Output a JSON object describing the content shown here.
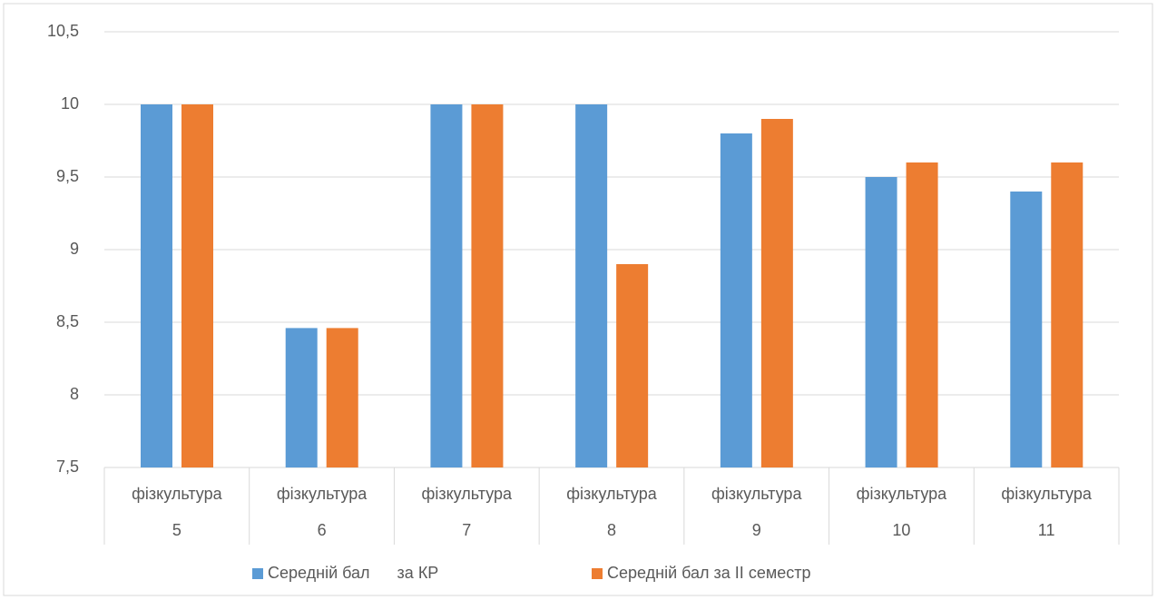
{
  "chart_data": {
    "type": "bar",
    "categories": [
      {
        "label": "фізкультура",
        "sublabel": "5"
      },
      {
        "label": "фізкультура",
        "sublabel": "6"
      },
      {
        "label": "фізкультура",
        "sublabel": "7"
      },
      {
        "label": "фізкультура",
        "sublabel": "8"
      },
      {
        "label": "фізкультура",
        "sublabel": "9"
      },
      {
        "label": "фізкультура",
        "sublabel": "10"
      },
      {
        "label": "фізкультура",
        "sublabel": "11"
      }
    ],
    "series": [
      {
        "name": "Середній бал      за КР",
        "color": "#5b9bd5",
        "values": [
          10,
          8.46,
          10,
          10,
          9.8,
          9.5,
          9.4
        ]
      },
      {
        "name": "Середній бал за ІІ семестр",
        "color": "#ed7d31",
        "values": [
          10,
          8.46,
          10,
          8.9,
          9.9,
          9.6,
          9.6
        ]
      }
    ],
    "ylim": [
      7.5,
      10.5
    ],
    "yticks": [
      {
        "value": 7.5,
        "label": "7,5"
      },
      8,
      {
        "value": 8.5,
        "label": "8,5"
      },
      9,
      {
        "value": 9.5,
        "label": "9,5"
      },
      10,
      {
        "value": 10.5,
        "label": "10,5"
      }
    ],
    "grid": true,
    "legend": "bottom"
  }
}
